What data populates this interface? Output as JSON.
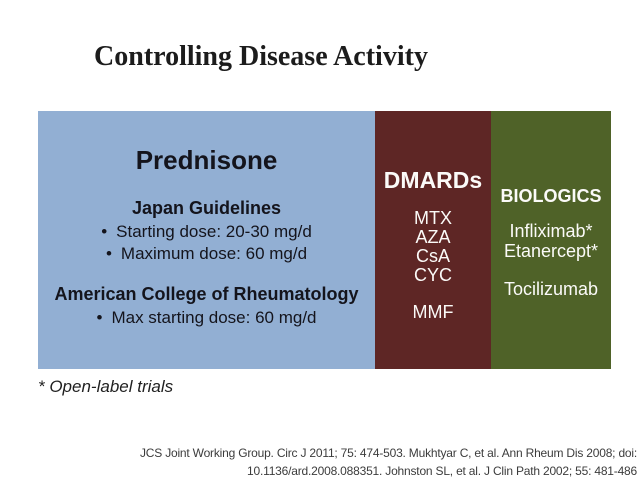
{
  "slide": {
    "title": "Controlling Disease Activity",
    "footnote": "* Open-label trials",
    "citation_line1": "JCS Joint Working Group. Circ J 2011; 75: 474-503. Mukhtyar C, et al. Ann Rheum Dis 2008; doi:",
    "citation_line2": "10.1136/ard.2008.088351. Johnston SL, et al. J Clin Path 2002; 55: 481-486"
  },
  "bullet_char": "•",
  "prednisone": {
    "title": "Prednisone",
    "japan_heading": "Japan Guidelines",
    "japan_bullets": [
      "Starting dose: 20-30 mg/d",
      "Maximum dose: 60 mg/d"
    ],
    "acr_heading": "American College of Rheumatology",
    "acr_bullets": [
      "Max starting dose: 60 mg/d"
    ]
  },
  "dmards": {
    "title": "DMARDs",
    "items": [
      "MTX",
      "AZA",
      "CsA",
      "CYC"
    ],
    "items_spaced": [
      "MMF"
    ]
  },
  "biologics": {
    "title": "BIOLOGICS",
    "items": [
      "Infliximab*",
      "Etanercept*"
    ],
    "items_spaced": [
      "Tocilizumab"
    ]
  },
  "colors": {
    "prednisone_box": "#92AFD3",
    "dmards_box": "#5E2625",
    "biologics_box": "#4F6228",
    "box_text_dark": "#14141C",
    "box_text_light": "#FBFAF8",
    "title_text": "#1C1C1C"
  }
}
